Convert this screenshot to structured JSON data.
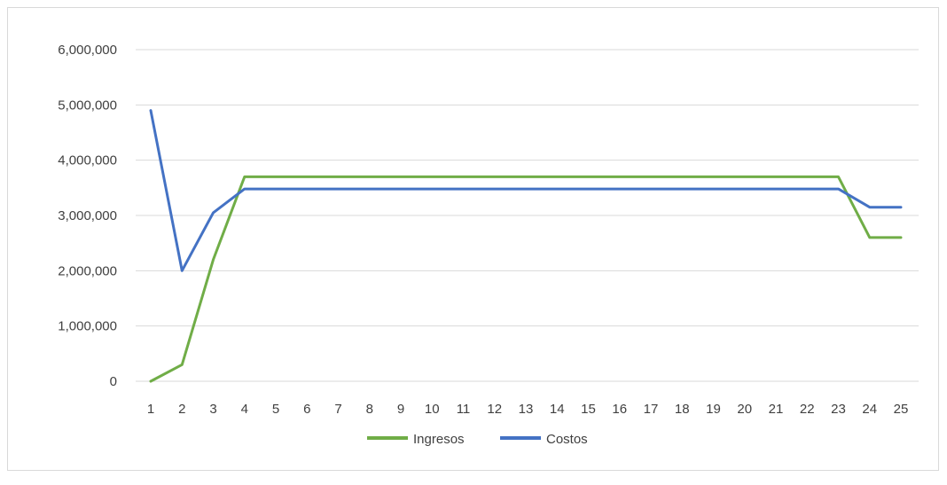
{
  "chart_data": {
    "type": "line",
    "title": "",
    "xlabel": "",
    "ylabel": "",
    "x": [
      1,
      2,
      3,
      4,
      5,
      6,
      7,
      8,
      9,
      10,
      11,
      12,
      13,
      14,
      15,
      16,
      17,
      18,
      19,
      20,
      21,
      22,
      23,
      24,
      25
    ],
    "ylim": [
      0,
      6000000
    ],
    "yticks": [
      0,
      1000000,
      2000000,
      3000000,
      4000000,
      5000000,
      6000000
    ],
    "ytick_labels": [
      "0",
      "1,000,000",
      "2,000,000",
      "3,000,000",
      "4,000,000",
      "5,000,000",
      "6,000,000"
    ],
    "grid": true,
    "legend_position": "bottom",
    "series": [
      {
        "name": "Ingresos",
        "color": "#70ad47",
        "values": [
          0,
          300000,
          2200000,
          3700000,
          3700000,
          3700000,
          3700000,
          3700000,
          3700000,
          3700000,
          3700000,
          3700000,
          3700000,
          3700000,
          3700000,
          3700000,
          3700000,
          3700000,
          3700000,
          3700000,
          3700000,
          3700000,
          3700000,
          2600000,
          2600000
        ]
      },
      {
        "name": "Costos",
        "color": "#4472c4",
        "values": [
          4900000,
          2000000,
          3050000,
          3480000,
          3480000,
          3480000,
          3480000,
          3480000,
          3480000,
          3480000,
          3480000,
          3480000,
          3480000,
          3480000,
          3480000,
          3480000,
          3480000,
          3480000,
          3480000,
          3480000,
          3480000,
          3480000,
          3480000,
          3150000,
          3150000
        ]
      }
    ]
  }
}
